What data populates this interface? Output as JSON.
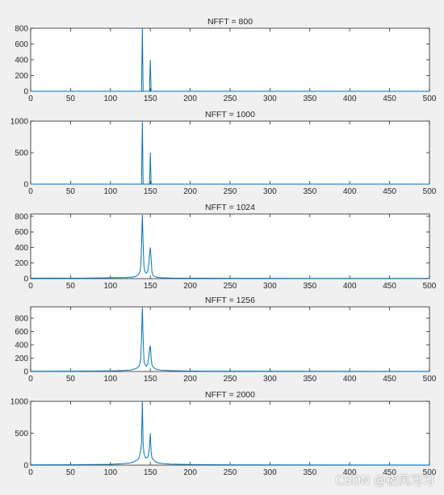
{
  "chart_data": [
    {
      "type": "line",
      "title": "NFFT = 800",
      "xlim": [
        0,
        500
      ],
      "ylim": [
        0,
        800
      ],
      "xticks": [
        0,
        50,
        100,
        150,
        200,
        250,
        300,
        350,
        400,
        450,
        500
      ],
      "yticks": [
        0,
        200,
        400,
        600,
        800
      ],
      "peaks": [
        {
          "x": 140,
          "y": 800
        },
        {
          "x": 150,
          "y": 400
        }
      ],
      "series": [
        {
          "x": [
            0,
            136,
            139,
            140,
            141,
            144,
            146,
            149,
            150,
            151,
            154,
            500
          ],
          "y": [
            0,
            0,
            0,
            800,
            0,
            0,
            0,
            0,
            400,
            0,
            0,
            0
          ]
        }
      ]
    },
    {
      "type": "line",
      "title": "NFFT = 1000",
      "xlim": [
        0,
        500
      ],
      "ylim": [
        0,
        1000
      ],
      "xticks": [
        0,
        50,
        100,
        150,
        200,
        250,
        300,
        350,
        400,
        450,
        500
      ],
      "yticks": [
        0,
        500,
        1000
      ],
      "peaks": [
        {
          "x": 140,
          "y": 1000
        },
        {
          "x": 150,
          "y": 500
        }
      ],
      "series": [
        {
          "x": [
            0,
            136,
            139,
            140,
            141,
            144,
            146,
            149,
            150,
            151,
            154,
            500
          ],
          "y": [
            0,
            0,
            0,
            1000,
            0,
            0,
            0,
            0,
            500,
            0,
            0,
            0
          ]
        }
      ]
    },
    {
      "type": "line",
      "title": "NFFT = 1024",
      "xlim": [
        0,
        500
      ],
      "ylim": [
        0,
        830
      ],
      "xticks": [
        0,
        50,
        100,
        150,
        200,
        250,
        300,
        350,
        400,
        450,
        500
      ],
      "yticks": [
        0,
        200,
        400,
        600,
        800
      ],
      "peaks": [
        {
          "x": 140,
          "y": 820
        },
        {
          "x": 150,
          "y": 400
        }
      ],
      "series": [
        {
          "x": [
            0,
            20,
            60,
            100,
            120,
            128,
            132,
            135,
            137,
            138,
            139,
            140,
            141,
            142,
            143,
            144,
            145,
            146,
            147,
            148,
            149,
            150,
            151,
            152,
            153,
            155,
            158,
            165,
            180,
            250,
            350,
            450,
            500
          ],
          "y": [
            5,
            6,
            5,
            10,
            14,
            20,
            30,
            50,
            90,
            160,
            420,
            820,
            430,
            170,
            100,
            75,
            70,
            80,
            110,
            180,
            300,
            400,
            250,
            90,
            50,
            30,
            18,
            10,
            6,
            4,
            3,
            2,
            2
          ]
        }
      ]
    },
    {
      "type": "line",
      "title": "NFFT = 1256",
      "xlim": [
        0,
        500
      ],
      "ylim": [
        0,
        970
      ],
      "xticks": [
        0,
        50,
        100,
        150,
        200,
        250,
        300,
        350,
        400,
        450,
        500
      ],
      "yticks": [
        0,
        200,
        400,
        600,
        800
      ],
      "peaks": [
        {
          "x": 140,
          "y": 960
        },
        {
          "x": 150,
          "y": 390
        }
      ],
      "series": [
        {
          "x": [
            0,
            50,
            100,
            115,
            125,
            130,
            134,
            136,
            137,
            138,
            139,
            140,
            141,
            142,
            143,
            145,
            147,
            148,
            149,
            150,
            151,
            152,
            154,
            157,
            162,
            175,
            200,
            250,
            350,
            500
          ],
          "y": [
            3,
            4,
            8,
            14,
            22,
            35,
            55,
            80,
            120,
            200,
            500,
            960,
            480,
            180,
            110,
            80,
            120,
            200,
            320,
            390,
            200,
            100,
            60,
            35,
            22,
            12,
            6,
            4,
            3,
            2
          ]
        }
      ]
    },
    {
      "type": "line",
      "title": "NFFT = 2000",
      "xlim": [
        0,
        500
      ],
      "ylim": [
        0,
        1000
      ],
      "xticks": [
        0,
        50,
        100,
        150,
        200,
        250,
        300,
        350,
        400,
        450,
        500
      ],
      "yticks": [
        0,
        500,
        1000
      ],
      "peaks": [
        {
          "x": 140,
          "y": 1000
        },
        {
          "x": 150,
          "y": 500
        }
      ],
      "series": [
        {
          "x": [
            0,
            50,
            100,
            115,
            125,
            130,
            134,
            136,
            137,
            138,
            139,
            140,
            141,
            142,
            143,
            145,
            147,
            148,
            149,
            150,
            151,
            152,
            154,
            157,
            162,
            175,
            200,
            250,
            350,
            500
          ],
          "y": [
            4,
            6,
            12,
            22,
            35,
            55,
            85,
            120,
            170,
            230,
            350,
            1000,
            330,
            190,
            140,
            110,
            130,
            190,
            300,
            500,
            200,
            120,
            80,
            50,
            30,
            16,
            9,
            5,
            3,
            2
          ]
        }
      ]
    }
  ],
  "watermark": "CSDN @夜风习习"
}
